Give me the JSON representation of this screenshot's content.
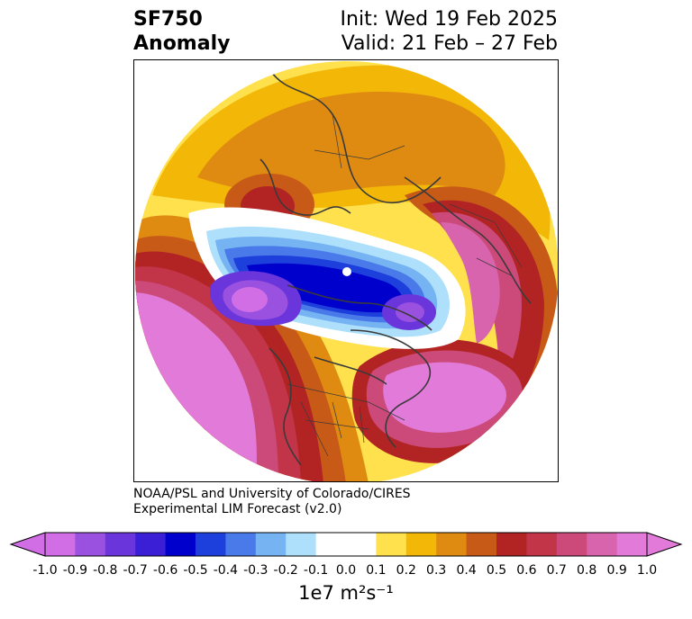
{
  "title": {
    "line1_left": "SF750",
    "line2_left": "Anomaly",
    "line1_right": "Init: Wed 19 Feb 2025",
    "line2_right": "Valid: 21 Feb – 27 Feb"
  },
  "credit": {
    "line1": "NOAA/PSL and University of Colorado/CIRES",
    "line2": "Experimental LIM Forecast (v2.0)"
  },
  "colorbar": {
    "label": "1e7 m²s⁻¹",
    "ticks": [
      "-1.0",
      "-0.9",
      "-0.8",
      "-0.7",
      "-0.6",
      "-0.5",
      "-0.4",
      "-0.3",
      "-0.2",
      "-0.1",
      "0.0",
      "0.1",
      "0.2",
      "0.3",
      "0.4",
      "0.5",
      "0.6",
      "0.7",
      "0.8",
      "0.9",
      "1.0"
    ],
    "colors": [
      "#d16ee6",
      "#9b51e0",
      "#6a35db",
      "#3a1fd6",
      "#0000cc",
      "#1d3fdc",
      "#4a7aea",
      "#76b3f2",
      "#aee0fb",
      "#ffffff",
      "#ffffff",
      "#ffe04d",
      "#f2b707",
      "#df8b12",
      "#c85a17",
      "#b22424",
      "#c23448",
      "#cc4a7a",
      "#d764ac",
      "#e27ad9"
    ],
    "under_color": "#d16ee6",
    "over_color": "#e27ad9"
  },
  "map": {
    "projection": "polar stereographic, North Pole centered",
    "pole_marker": "white dot",
    "features": [
      "coastlines",
      "country borders",
      "US state borders"
    ]
  }
}
